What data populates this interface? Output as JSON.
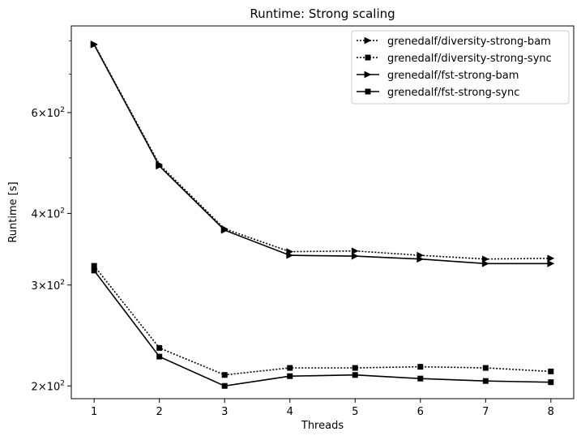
{
  "chart_data": {
    "type": "line",
    "title": "Runtime:  Strong scaling",
    "xlabel": "Threads",
    "ylabel": "Runtime  [s]",
    "y_scale": "log",
    "x": [
      1,
      2,
      3,
      4,
      5,
      6,
      7,
      8
    ],
    "x_tick_labels": [
      "1",
      "2",
      "3",
      "4",
      "5",
      "6",
      "7",
      "8"
    ],
    "xlim": [
      0.65,
      8.35
    ],
    "ylim": [
      190,
      850
    ],
    "y_ticks": [
      {
        "value": 200,
        "base": "2",
        "exp": "2"
      },
      {
        "value": 300,
        "base": "3",
        "exp": "2"
      },
      {
        "value": 400,
        "base": "4",
        "exp": "2"
      },
      {
        "value": 600,
        "base": "6",
        "exp": "2"
      }
    ],
    "y_minor_ticks": [
      500,
      700,
      800
    ],
    "grid": false,
    "legend_position": "top-right",
    "series": [
      {
        "name": "grenedalf/diversity-strong-bam",
        "line_style": "dotted",
        "marker": "triangle-right",
        "color": "#000000",
        "values": [
          790,
          487,
          376,
          343,
          344,
          338,
          333,
          334
        ]
      },
      {
        "name": "grenedalf/diversity-strong-sync",
        "line_style": "dotted",
        "marker": "square",
        "color": "#000000",
        "values": [
          324,
          233,
          209,
          215,
          215,
          216,
          215,
          212
        ]
      },
      {
        "name": "grenedalf/fst-strong-bam",
        "line_style": "solid",
        "marker": "triangle-right",
        "color": "#000000",
        "values": [
          788,
          484,
          374,
          338,
          337,
          333,
          327,
          327
        ]
      },
      {
        "name": "grenedalf/fst-strong-sync",
        "line_style": "solid",
        "marker": "square",
        "color": "#000000",
        "values": [
          318,
          225,
          200,
          208,
          209,
          206,
          204,
          203
        ]
      }
    ]
  }
}
